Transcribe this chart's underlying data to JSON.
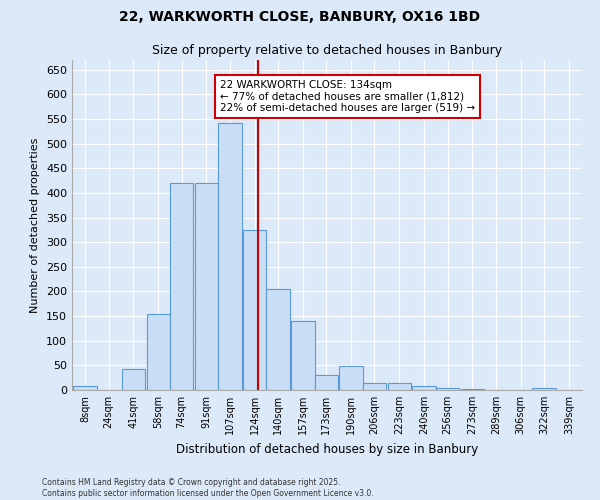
{
  "title": "22, WARKWORTH CLOSE, BANBURY, OX16 1BD",
  "subtitle": "Size of property relative to detached houses in Banbury",
  "xlabel": "Distribution of detached houses by size in Banbury",
  "ylabel": "Number of detached properties",
  "bin_labels": [
    "8sqm",
    "24sqm",
    "41sqm",
    "58sqm",
    "74sqm",
    "91sqm",
    "107sqm",
    "124sqm",
    "140sqm",
    "157sqm",
    "173sqm",
    "190sqm",
    "206sqm",
    "223sqm",
    "240sqm",
    "256sqm",
    "273sqm",
    "289sqm",
    "306sqm",
    "322sqm",
    "339sqm"
  ],
  "bin_edges": [
    8,
    24,
    41,
    58,
    74,
    91,
    107,
    124,
    140,
    157,
    173,
    190,
    206,
    223,
    240,
    256,
    273,
    289,
    306,
    322,
    339
  ],
  "bar_heights": [
    8,
    0,
    42,
    155,
    420,
    420,
    542,
    325,
    205,
    140,
    30,
    48,
    15,
    15,
    8,
    5,
    2,
    0,
    0,
    5,
    0
  ],
  "bar_color": "#c9ddf5",
  "bar_edge_color": "#5b9bd5",
  "property_value": 134,
  "vline_color": "#cc0000",
  "annotation_text": "22 WARKWORTH CLOSE: 134sqm\n← 77% of detached houses are smaller (1,812)\n22% of semi-detached houses are larger (519) →",
  "annotation_box_edge": "#cc0000",
  "ylim": [
    0,
    670
  ],
  "yticks": [
    0,
    50,
    100,
    150,
    200,
    250,
    300,
    350,
    400,
    450,
    500,
    550,
    600,
    650
  ],
  "footer_line1": "Contains HM Land Registry data © Crown copyright and database right 2025.",
  "footer_line2": "Contains public sector information licensed under the Open Government Licence v3.0.",
  "background_color": "#dce9f8",
  "plot_bg_color": "#dce9f8"
}
